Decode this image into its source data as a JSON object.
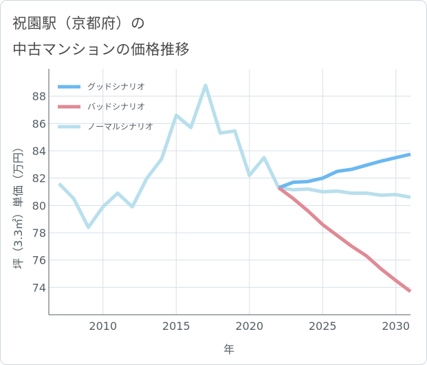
{
  "header": {
    "title_line1": "祝園駅（京都府）の",
    "title_line2": "中古マンションの価格推移"
  },
  "chart_data": {
    "type": "line",
    "xlabel": "年",
    "ylabel": "坪（3.3㎡）単価（万円）",
    "xlim": [
      2006.3,
      2031
    ],
    "ylim": [
      72,
      90
    ],
    "x_ticks": [
      2010,
      2015,
      2020,
      2025,
      2030
    ],
    "y_ticks": [
      74,
      76,
      78,
      80,
      82,
      84,
      86,
      88
    ],
    "grid": true,
    "legend_position": "top-left",
    "series": [
      {
        "name": "グッドシナリオ",
        "color": "#6bb8ef",
        "x": [
          2022,
          2023,
          2024,
          2025,
          2026,
          2027,
          2028,
          2029,
          2030,
          2031
        ],
        "values": [
          81.3,
          81.7,
          81.75,
          82.0,
          82.5,
          82.65,
          82.95,
          83.25,
          83.5,
          83.75
        ]
      },
      {
        "name": "バッドシナリオ",
        "color": "#e08a95",
        "x": [
          2022,
          2023,
          2024,
          2025,
          2026,
          2027,
          2028,
          2029,
          2030,
          2031
        ],
        "values": [
          81.3,
          80.5,
          79.6,
          78.6,
          77.8,
          77.0,
          76.3,
          75.35,
          74.5,
          73.7
        ]
      },
      {
        "name": "ノーマルシナリオ",
        "color": "#b8dfec",
        "x": [
          2007,
          2008,
          2009,
          2010,
          2011,
          2012,
          2013,
          2014,
          2015,
          2016,
          2017,
          2018,
          2019,
          2020,
          2021,
          2022,
          2023,
          2024,
          2025,
          2026,
          2027,
          2028,
          2029,
          2030,
          2031
        ],
        "values": [
          81.6,
          80.5,
          78.4,
          79.9,
          80.9,
          79.9,
          82.0,
          83.4,
          86.6,
          85.7,
          88.8,
          85.3,
          85.45,
          82.2,
          83.5,
          81.3,
          81.15,
          81.2,
          81.0,
          81.05,
          80.9,
          80.9,
          80.75,
          80.8,
          80.6
        ]
      }
    ]
  }
}
